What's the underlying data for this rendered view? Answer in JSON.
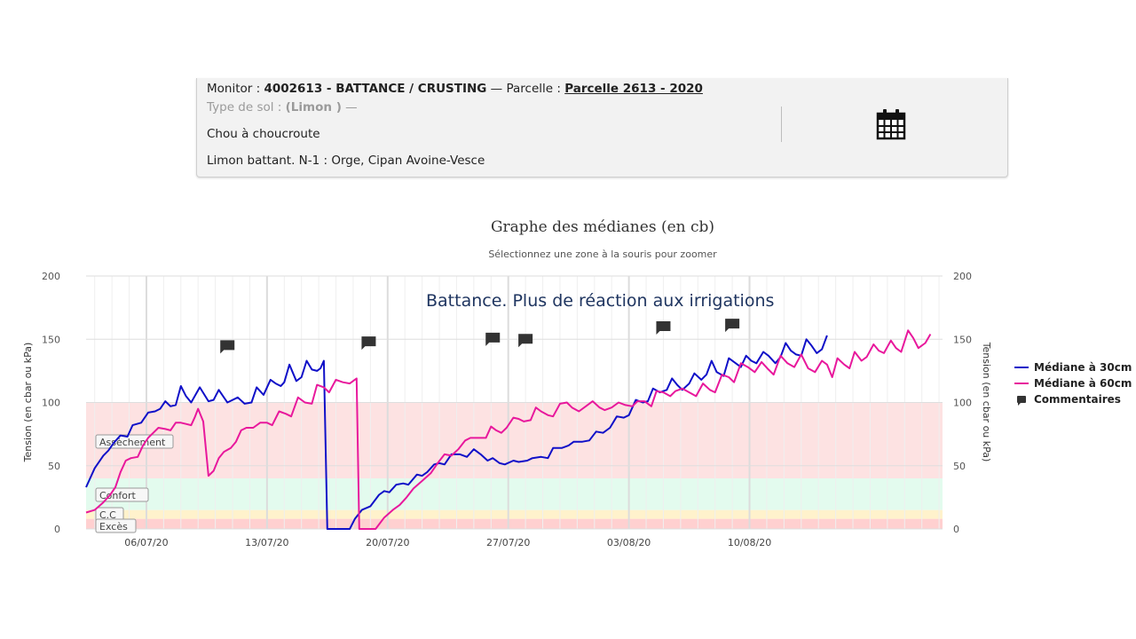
{
  "header": {
    "monitor_label": "Monitor : ",
    "monitor_value": "4002613 - BATTANCE / CRUSTING",
    "separator": " — Parcelle : ",
    "parcelle_link": "Parcelle 2613 - 2020",
    "soil_label": "Type de sol : ",
    "soil_value": "(Limon )",
    "soil_suffix": " —",
    "crop": "Chou à choucroute",
    "notes": "Limon battant. N-1 : Orge, Cipan Avoine-Vesce",
    "calendar_icon": "calendar-icon"
  },
  "chart_data": {
    "type": "line",
    "title": "Graphe des médianes (en cb)",
    "subtitle": "Sélectionnez une zone à la souris pour zoomer",
    "ylabel": "Tension (en cbar ou kPa)",
    "ylabel_right": "Tension (en cbar ou kPa)",
    "ylim": [
      0,
      200
    ],
    "y_ticks": [
      "0",
      "50",
      "100",
      "150",
      "200"
    ],
    "x_ticks": [
      "06/07/20",
      "13/07/20",
      "20/07/20",
      "27/07/20",
      "03/08/20",
      "10/08/20"
    ],
    "grid": true,
    "legend_position": "right",
    "annotation": "Battance. Plus de réaction aux irrigations",
    "bands": [
      {
        "label": "Excès",
        "from": 0,
        "to": 8,
        "color": "#ffd0d0"
      },
      {
        "label": "C.C",
        "from": 8,
        "to": 15,
        "color": "#fff2cc"
      },
      {
        "label": "Confort",
        "from": 15,
        "to": 40,
        "color": "#e3fbee"
      },
      {
        "label": "Assèchement",
        "from": 40,
        "to": 100,
        "color": "#fde2e2"
      }
    ],
    "series": [
      {
        "name": "Médiane à 30cm",
        "color": "#1010c8",
        "points": [
          [
            0,
            33
          ],
          [
            0.5,
            48
          ],
          [
            1,
            58
          ],
          [
            1.3,
            62
          ],
          [
            1.6,
            68
          ],
          [
            2,
            74
          ],
          [
            2.4,
            73
          ],
          [
            2.7,
            82
          ],
          [
            3.2,
            84
          ],
          [
            3.6,
            92
          ],
          [
            4,
            93
          ],
          [
            4.3,
            95
          ],
          [
            4.6,
            101
          ],
          [
            4.9,
            97
          ],
          [
            5.2,
            98
          ],
          [
            5.5,
            113
          ],
          [
            5.8,
            105
          ],
          [
            6.1,
            100
          ],
          [
            6.6,
            112
          ],
          [
            7.1,
            101
          ],
          [
            7.4,
            102
          ],
          [
            7.7,
            110
          ],
          [
            8.2,
            100
          ],
          [
            8.8,
            104
          ],
          [
            9.2,
            99
          ],
          [
            9.6,
            100
          ],
          [
            9.9,
            112
          ],
          [
            10.3,
            106
          ],
          [
            10.7,
            118
          ],
          [
            11.0,
            115
          ],
          [
            11.3,
            113
          ],
          [
            11.5,
            116
          ],
          [
            11.8,
            130
          ],
          [
            12.2,
            117
          ],
          [
            12.5,
            120
          ],
          [
            12.8,
            133
          ],
          [
            13.1,
            126
          ],
          [
            13.4,
            125
          ],
          [
            13.6,
            127
          ],
          [
            13.8,
            133
          ],
          [
            14.0,
            0
          ],
          [
            14.5,
            0
          ],
          [
            15.3,
            0
          ],
          [
            15.6,
            8
          ],
          [
            16.0,
            15
          ],
          [
            16.5,
            18
          ],
          [
            17.0,
            27
          ],
          [
            17.3,
            30
          ],
          [
            17.6,
            29
          ],
          [
            18.0,
            35
          ],
          [
            18.4,
            36
          ],
          [
            18.7,
            35
          ],
          [
            19.2,
            43
          ],
          [
            19.5,
            42
          ],
          [
            19.8,
            45
          ],
          [
            20.2,
            51
          ],
          [
            20.5,
            52
          ],
          [
            20.8,
            51
          ],
          [
            21.2,
            59
          ],
          [
            21.7,
            59
          ],
          [
            22.1,
            57
          ],
          [
            22.5,
            63
          ],
          [
            22.9,
            59
          ],
          [
            23.3,
            54
          ],
          [
            23.6,
            56
          ],
          [
            24.0,
            52
          ],
          [
            24.3,
            51
          ],
          [
            24.8,
            54
          ],
          [
            25.1,
            53
          ],
          [
            25.6,
            54
          ],
          [
            25.9,
            56
          ],
          [
            26.4,
            57
          ],
          [
            26.8,
            56
          ],
          [
            27.1,
            64
          ],
          [
            27.6,
            64
          ],
          [
            28.0,
            66
          ],
          [
            28.3,
            69
          ],
          [
            28.8,
            69
          ],
          [
            29.2,
            70
          ],
          [
            29.6,
            77
          ],
          [
            30.0,
            76
          ],
          [
            30.4,
            80
          ],
          [
            30.8,
            89
          ],
          [
            31.2,
            88
          ],
          [
            31.5,
            90
          ],
          [
            31.9,
            102
          ],
          [
            32.3,
            100
          ],
          [
            32.6,
            101
          ],
          [
            32.9,
            111
          ],
          [
            33.3,
            108
          ],
          [
            33.7,
            110
          ],
          [
            34.0,
            119
          ],
          [
            34.3,
            114
          ],
          [
            34.6,
            110
          ],
          [
            35.0,
            115
          ],
          [
            35.3,
            123
          ],
          [
            35.7,
            118
          ],
          [
            36.0,
            122
          ],
          [
            36.3,
            133
          ],
          [
            36.6,
            124
          ],
          [
            37.0,
            121
          ],
          [
            37.3,
            135
          ],
          [
            37.7,
            131
          ],
          [
            38.0,
            128
          ],
          [
            38.3,
            137
          ],
          [
            38.6,
            133
          ],
          [
            38.9,
            131
          ],
          [
            39.3,
            140
          ],
          [
            39.6,
            137
          ],
          [
            40.0,
            131
          ],
          [
            40.3,
            136
          ],
          [
            40.6,
            147
          ],
          [
            40.9,
            141
          ],
          [
            41.2,
            138
          ],
          [
            41.5,
            137
          ],
          [
            41.8,
            150
          ],
          [
            42.1,
            145
          ],
          [
            42.4,
            139
          ],
          [
            42.7,
            142
          ],
          [
            43.0,
            153
          ]
        ]
      },
      {
        "name": "Médiane à 60cm",
        "color": "#e8189c",
        "points": [
          [
            0,
            13
          ],
          [
            0.5,
            15
          ],
          [
            1,
            21
          ],
          [
            1.4,
            27
          ],
          [
            1.7,
            33
          ],
          [
            2,
            45
          ],
          [
            2.3,
            54
          ],
          [
            2.6,
            56
          ],
          [
            3.0,
            57
          ],
          [
            3.3,
            66
          ],
          [
            3.6,
            72
          ],
          [
            3.9,
            76
          ],
          [
            4.2,
            80
          ],
          [
            4.6,
            79
          ],
          [
            4.9,
            78
          ],
          [
            5.2,
            84
          ],
          [
            5.5,
            84
          ],
          [
            5.8,
            83
          ],
          [
            6.1,
            82
          ],
          [
            6.3,
            88
          ],
          [
            6.5,
            95
          ],
          [
            6.8,
            85
          ],
          [
            7.1,
            42
          ],
          [
            7.4,
            46
          ],
          [
            7.7,
            56
          ],
          [
            8.0,
            61
          ],
          [
            8.4,
            64
          ],
          [
            8.7,
            69
          ],
          [
            9.0,
            78
          ],
          [
            9.3,
            80
          ],
          [
            9.7,
            80
          ],
          [
            10.1,
            84
          ],
          [
            10.5,
            84
          ],
          [
            10.8,
            82
          ],
          [
            11.2,
            93
          ],
          [
            11.6,
            91
          ],
          [
            11.9,
            89
          ],
          [
            12.3,
            104
          ],
          [
            12.7,
            100
          ],
          [
            13.1,
            99
          ],
          [
            13.4,
            114
          ],
          [
            13.8,
            112
          ],
          [
            14.1,
            108
          ],
          [
            14.5,
            118
          ],
          [
            14.9,
            116
          ],
          [
            15.3,
            115
          ],
          [
            15.7,
            119
          ],
          [
            15.85,
            0
          ],
          [
            16.8,
            0
          ],
          [
            17.3,
            9
          ],
          [
            17.8,
            15
          ],
          [
            18.2,
            19
          ],
          [
            18.6,
            25
          ],
          [
            19.0,
            32
          ],
          [
            19.5,
            38
          ],
          [
            20.0,
            44
          ],
          [
            20.4,
            52
          ],
          [
            20.8,
            59
          ],
          [
            21.2,
            58
          ],
          [
            21.6,
            63
          ],
          [
            22.0,
            70
          ],
          [
            22.3,
            72
          ],
          [
            22.8,
            72
          ],
          [
            23.2,
            72
          ],
          [
            23.5,
            81
          ],
          [
            23.8,
            78
          ],
          [
            24.1,
            76
          ],
          [
            24.4,
            80
          ],
          [
            24.8,
            88
          ],
          [
            25.1,
            87
          ],
          [
            25.4,
            85
          ],
          [
            25.8,
            86
          ],
          [
            26.1,
            96
          ],
          [
            26.4,
            93
          ],
          [
            26.8,
            90
          ],
          [
            27.1,
            89
          ],
          [
            27.5,
            99
          ],
          [
            27.9,
            100
          ],
          [
            28.2,
            96
          ],
          [
            28.6,
            93
          ],
          [
            29.0,
            97
          ],
          [
            29.4,
            101
          ],
          [
            29.8,
            96
          ],
          [
            30.1,
            94
          ],
          [
            30.5,
            96
          ],
          [
            30.9,
            100
          ],
          [
            31.3,
            98
          ],
          [
            31.7,
            97
          ],
          [
            32.0,
            101
          ],
          [
            32.4,
            101
          ],
          [
            32.8,
            97
          ],
          [
            33.1,
            109
          ],
          [
            33.5,
            108
          ],
          [
            33.9,
            105
          ],
          [
            34.2,
            109
          ],
          [
            34.6,
            111
          ],
          [
            35.0,
            108
          ],
          [
            35.4,
            105
          ],
          [
            35.8,
            115
          ],
          [
            36.2,
            110
          ],
          [
            36.5,
            108
          ],
          [
            36.9,
            122
          ],
          [
            37.3,
            120
          ],
          [
            37.6,
            116
          ],
          [
            38.0,
            131
          ],
          [
            38.4,
            128
          ],
          [
            38.8,
            124
          ],
          [
            39.2,
            132
          ],
          [
            39.6,
            126
          ],
          [
            39.9,
            122
          ],
          [
            40.3,
            137
          ],
          [
            40.7,
            131
          ],
          [
            41.1,
            128
          ],
          [
            41.5,
            138
          ],
          [
            41.9,
            127
          ],
          [
            42.3,
            124
          ],
          [
            42.7,
            133
          ],
          [
            43.0,
            130
          ],
          [
            43.3,
            120
          ],
          [
            43.6,
            135
          ],
          [
            44.0,
            130
          ],
          [
            44.3,
            127
          ],
          [
            44.6,
            140
          ],
          [
            45.0,
            133
          ],
          [
            45.3,
            136
          ],
          [
            45.7,
            146
          ],
          [
            46.0,
            141
          ],
          [
            46.3,
            139
          ],
          [
            46.7,
            149
          ],
          [
            47.0,
            143
          ],
          [
            47.3,
            140
          ],
          [
            47.7,
            157
          ],
          [
            48.0,
            151
          ],
          [
            48.3,
            143
          ],
          [
            48.7,
            147
          ],
          [
            49.0,
            154
          ]
        ]
      }
    ],
    "comments_series": {
      "name": "Commentaires",
      "points": [
        [
          8.2,
          145
        ],
        [
          16.4,
          148
        ],
        [
          23.6,
          151
        ],
        [
          25.5,
          150
        ],
        [
          33.5,
          160
        ],
        [
          37.5,
          162
        ]
      ]
    }
  }
}
